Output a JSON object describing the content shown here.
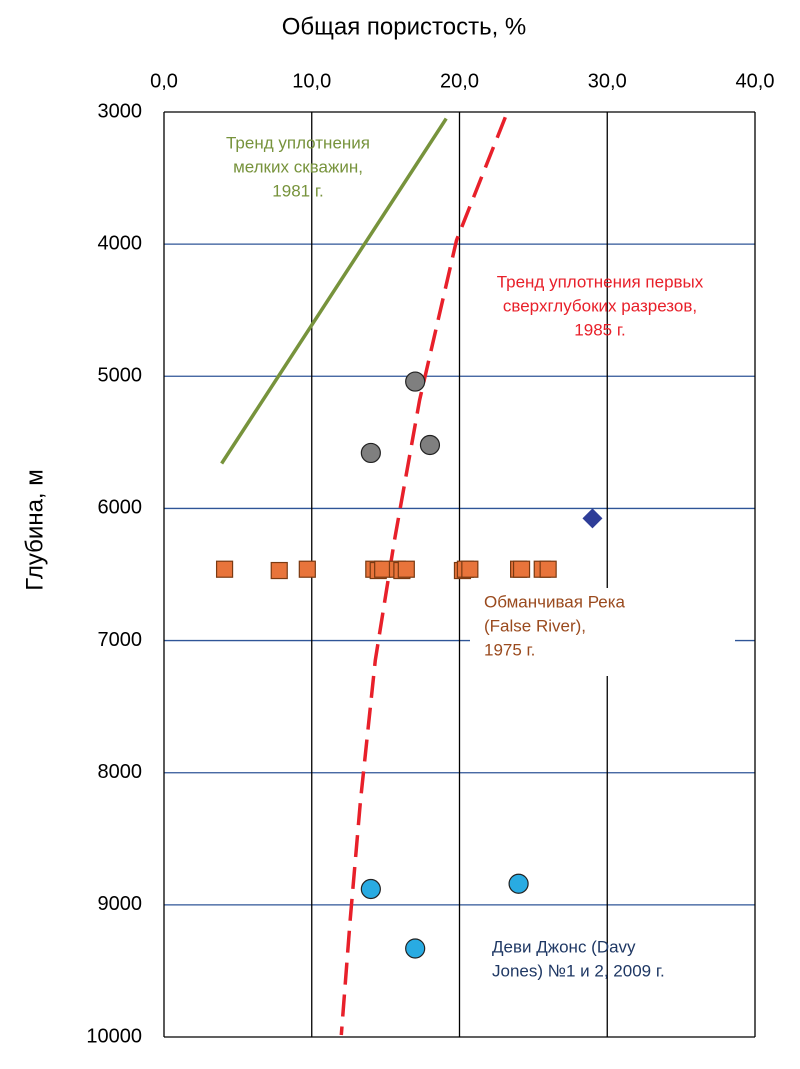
{
  "chart_data": {
    "type": "scatter",
    "title": "Общая пористость, %",
    "y_label": "Глубина, м",
    "xlim": [
      0,
      40
    ],
    "xticks": [
      {
        "value": 0,
        "label": "0,0"
      },
      {
        "value": 10,
        "label": "10,0"
      },
      {
        "value": 20,
        "label": "20,0"
      },
      {
        "value": 30,
        "label": "30,0"
      },
      {
        "value": 40,
        "label": "40,0"
      }
    ],
    "ylim": [
      10000,
      3000
    ],
    "yticks": [
      3000,
      4000,
      5000,
      6000,
      7000,
      8000,
      9000,
      10000
    ],
    "y_inverted": true,
    "grid": true,
    "series": [
      {
        "marker": "line",
        "color": "#77933c",
        "x": [
          3.9,
          19.1
        ],
        "values": [
          5660,
          3050
        ]
      },
      {
        "marker": "dashed-line",
        "color": "#e8202a",
        "x": [
          23.1,
          19.8,
          17.3,
          15.6,
          14.3,
          13.3,
          12.6,
          12.0
        ],
        "values": [
          3040,
          3970,
          5180,
          6240,
          7150,
          8210,
          9115,
          9985
        ]
      },
      {
        "marker": "circle",
        "color": "#7f7f7f",
        "x": [
          17.0,
          14.0,
          18.0
        ],
        "values": [
          5040,
          5580,
          5520
        ]
      },
      {
        "marker": "square",
        "color": "#e8743b",
        "x": [
          4.1,
          7.8,
          9.7,
          14.2,
          14.5,
          14.8,
          15.8,
          16.1,
          16.4,
          20.2,
          20.4,
          20.7,
          24.0,
          24.2,
          25.6,
          26.0
        ],
        "values": [
          6460,
          6470,
          6460,
          6460,
          6470,
          6460,
          6460,
          6470,
          6460,
          6470,
          6460,
          6460,
          6460,
          6460,
          6460,
          6460
        ]
      },
      {
        "marker": "diamond",
        "color": "#2e3d98",
        "x": [
          29.0
        ],
        "values": [
          6075
        ]
      },
      {
        "marker": "circle",
        "color": "#29abe2",
        "x": [
          14.0,
          24.0,
          17.0
        ],
        "values": [
          8880,
          8840,
          9330
        ]
      }
    ],
    "annotations": [
      {
        "color": "#77933c",
        "lines": [
          "Тренд уплотнения",
          "мелких скважин,",
          "1981 г."
        ]
      },
      {
        "color": "#e8202a",
        "lines": [
          "Тренд уплотнения первых",
          "сверхглубоких разрезов,",
          "1985 г."
        ]
      },
      {
        "color": "#9a4a1e",
        "lines": [
          "Обманчивая Река",
          "(False River),",
          "1975 г."
        ]
      },
      {
        "color": "#1f3864",
        "lines": [
          "Деви Джонс (Davy",
          "Jones) №1 и 2, 2009 г."
        ]
      }
    ]
  }
}
